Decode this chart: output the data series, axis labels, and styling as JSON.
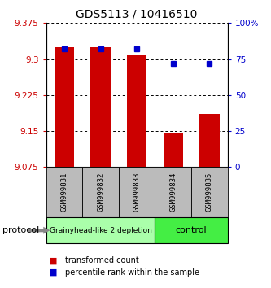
{
  "title": "GDS5113 / 10416510",
  "samples": [
    "GSM999831",
    "GSM999832",
    "GSM999833",
    "GSM999834",
    "GSM999835"
  ],
  "red_values": [
    9.325,
    9.325,
    9.31,
    9.145,
    9.185
  ],
  "blue_values": [
    82,
    82,
    82,
    72,
    72
  ],
  "y_min": 9.075,
  "y_max": 9.375,
  "y_ticks": [
    9.075,
    9.15,
    9.225,
    9.3,
    9.375
  ],
  "right_y_ticks": [
    0,
    25,
    50,
    75,
    100
  ],
  "right_y_labels": [
    "0",
    "25",
    "50",
    "75",
    "100%"
  ],
  "groups": [
    {
      "label": "Grainyhead-like 2 depletion",
      "indices": [
        0,
        1,
        2
      ],
      "color": "#aaffaa"
    },
    {
      "label": "control",
      "indices": [
        3,
        4
      ],
      "color": "#44ee44"
    }
  ],
  "bar_color": "#cc0000",
  "square_color": "#0000cc",
  "protocol_label": "protocol",
  "legend_red_label": "transformed count",
  "legend_blue_label": "percentile rank within the sample",
  "background_color": "#ffffff",
  "plot_bg_color": "#ffffff",
  "tick_label_bg": "#bbbbbb",
  "title_fontsize": 10,
  "axis_fontsize": 7.5
}
